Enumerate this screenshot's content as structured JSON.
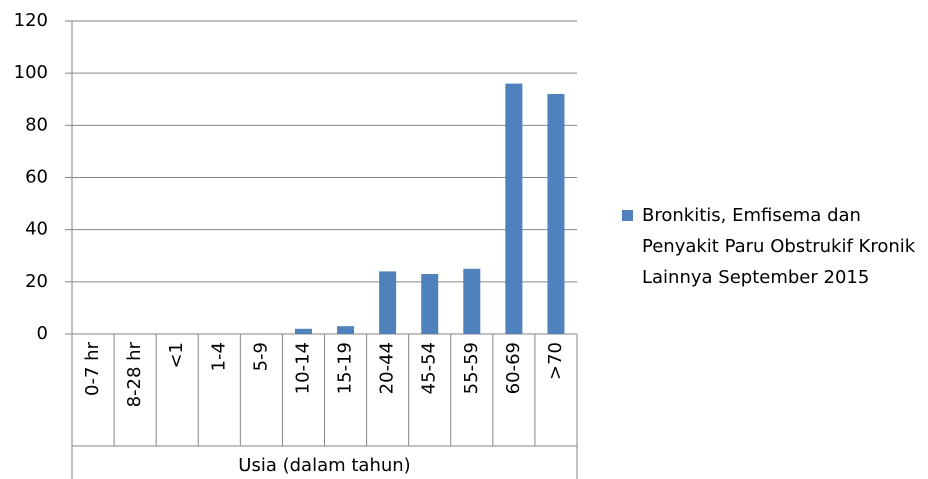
{
  "chart_data": {
    "type": "bar",
    "x_label": "Usia (dalam tahun)",
    "categories": [
      "0-7 hr",
      "8-28 hr",
      "<1",
      "1-4",
      "5-9",
      "10-14",
      "15-19",
      "20-44",
      "45-54",
      "55-59",
      "60-69",
      ">70"
    ],
    "series": [
      {
        "name": "Bronkitis, Emfisema dan Penyakit Paru Obstrukif Kronik Lainnya September 2015",
        "color": "#4f81bd",
        "values": [
          0,
          0,
          0,
          0,
          0,
          2,
          3,
          24,
          23,
          25,
          96,
          92
        ]
      }
    ],
    "ylim": [
      0,
      120
    ],
    "yticks": [
      0,
      20,
      40,
      60,
      80,
      100,
      120
    ],
    "grid": true,
    "legend": "right"
  }
}
